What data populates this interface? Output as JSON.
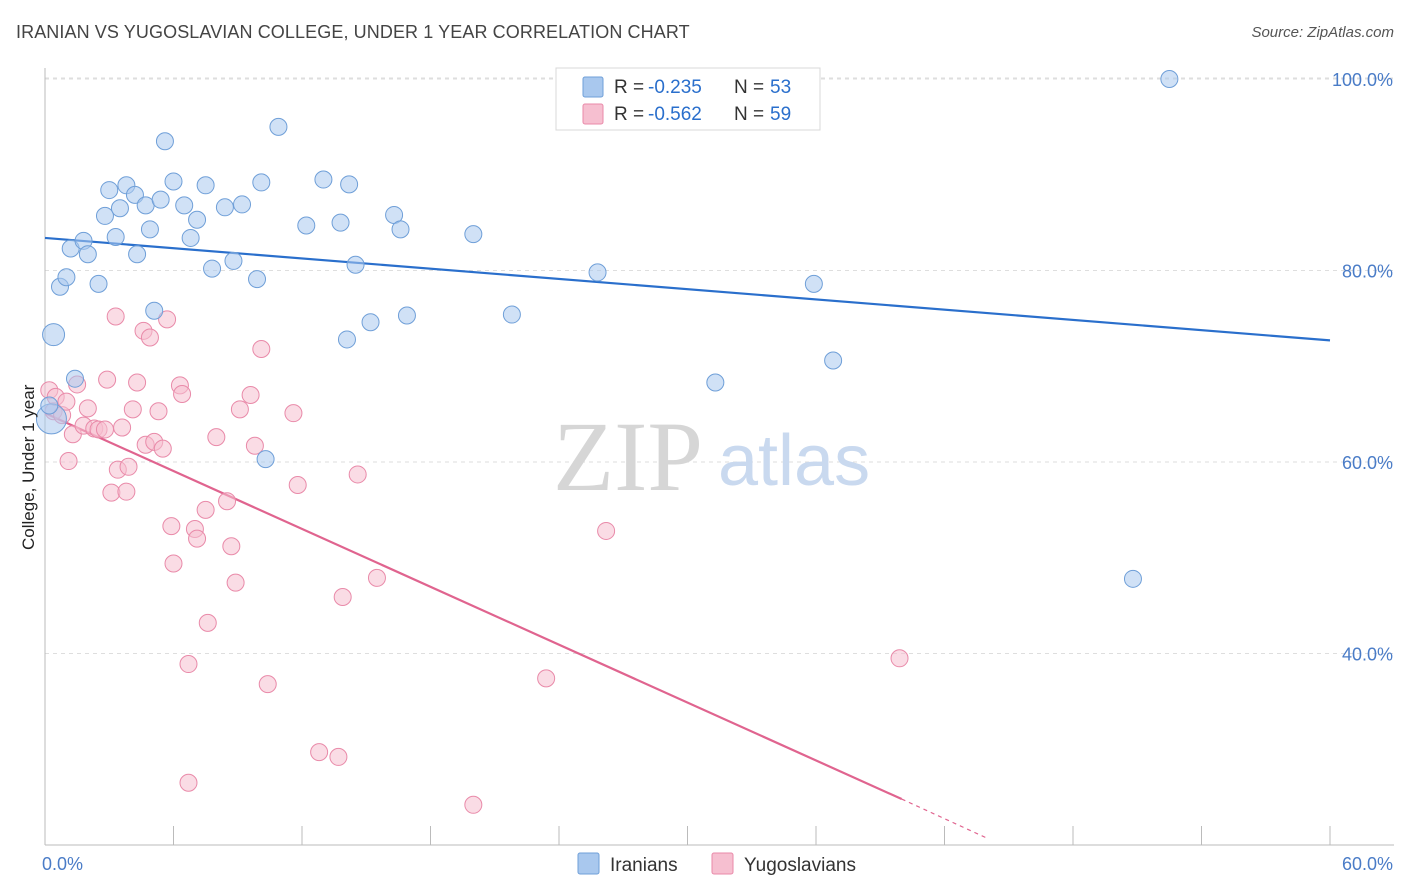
{
  "title": "IRANIAN VS YUGOSLAVIAN COLLEGE, UNDER 1 YEAR CORRELATION CHART",
  "source": "Source: ZipAtlas.com",
  "watermark": {
    "zip": "ZIP",
    "atlas": "atlas"
  },
  "legend": {
    "r_label": "R =",
    "n_label": "N =",
    "iranians": {
      "r": "-0.235",
      "n": "53"
    },
    "yugoslavians": {
      "r": "-0.562",
      "n": "59"
    }
  },
  "colors": {
    "iranians_fill": "#a9c8ee",
    "iranians_stroke": "#6f9fd8",
    "iranians_line": "#2a6fcc",
    "yugoslavians_fill": "#f6bfd0",
    "yugoslavians_stroke": "#e98aa9",
    "yugoslavians_line": "#e0648f",
    "value_text": "#2a6fcc"
  },
  "chart_data": {
    "type": "scatter",
    "title": "IRANIAN VS YUGOSLAVIAN COLLEGE, UNDER 1 YEAR CORRELATION CHART",
    "xlabel": "",
    "ylabel": "College, Under 1 year",
    "xlim": [
      0,
      60
    ],
    "ylim": [
      20,
      104
    ],
    "x_tick_labels": [
      "0.0%",
      "60.0%"
    ],
    "y_ticks": [
      40,
      60,
      80,
      100
    ],
    "y_tick_labels": [
      "40.0%",
      "60.0%",
      "80.0%",
      "100.0%"
    ],
    "grid": true,
    "legend_position": "top-center",
    "series": [
      {
        "name": "Iranians",
        "color": "#a9c8ee",
        "trend": {
          "x": [
            0,
            60
          ],
          "y": [
            83.4,
            72.7
          ]
        },
        "points": [
          [
            0.4,
            73.3
          ],
          [
            0.3,
            64.5
          ],
          [
            0.7,
            78.3
          ],
          [
            1.0,
            79.3
          ],
          [
            1.2,
            82.3
          ],
          [
            1.4,
            68.7
          ],
          [
            1.8,
            83.1
          ],
          [
            2.0,
            81.7
          ],
          [
            2.5,
            78.6
          ],
          [
            2.8,
            85.7
          ],
          [
            3.0,
            88.4
          ],
          [
            3.3,
            83.5
          ],
          [
            3.5,
            86.5
          ],
          [
            3.8,
            88.9
          ],
          [
            4.2,
            87.9
          ],
          [
            4.3,
            81.7
          ],
          [
            4.7,
            86.8
          ],
          [
            4.9,
            84.3
          ],
          [
            5.1,
            75.8
          ],
          [
            5.4,
            87.4
          ],
          [
            5.6,
            93.5
          ],
          [
            6.0,
            89.3
          ],
          [
            6.5,
            86.8
          ],
          [
            6.8,
            83.4
          ],
          [
            7.1,
            85.3
          ],
          [
            7.5,
            88.9
          ],
          [
            7.8,
            80.2
          ],
          [
            8.4,
            86.6
          ],
          [
            8.8,
            81.0
          ],
          [
            9.2,
            86.9
          ],
          [
            9.9,
            79.1
          ],
          [
            10.1,
            89.2
          ],
          [
            10.3,
            60.3
          ],
          [
            10.9,
            95.0
          ],
          [
            12.2,
            84.7
          ],
          [
            13.0,
            89.5
          ],
          [
            13.8,
            85.0
          ],
          [
            14.1,
            72.8
          ],
          [
            14.2,
            89.0
          ],
          [
            14.5,
            80.6
          ],
          [
            15.2,
            74.6
          ],
          [
            16.3,
            85.8
          ],
          [
            16.6,
            84.3
          ],
          [
            16.9,
            75.3
          ],
          [
            20.0,
            83.8
          ],
          [
            21.8,
            75.4
          ],
          [
            25.8,
            79.8
          ],
          [
            31.3,
            68.3
          ],
          [
            35.9,
            78.6
          ],
          [
            36.8,
            70.6
          ],
          [
            50.8,
            47.8
          ],
          [
            52.5,
            100.0
          ],
          [
            0.2,
            65.9
          ]
        ]
      },
      {
        "name": "Yugoslavians",
        "color": "#f6bfd0",
        "trend": {
          "x": [
            0,
            40
          ],
          "y": [
            65.1,
            24.8
          ]
        },
        "trend_dashed": {
          "x": [
            40,
            44
          ],
          "y": [
            24.8,
            20.7
          ]
        },
        "points": [
          [
            0.2,
            67.5
          ],
          [
            0.4,
            65.3
          ],
          [
            0.5,
            66.8
          ],
          [
            0.8,
            64.9
          ],
          [
            1.0,
            66.3
          ],
          [
            1.1,
            60.1
          ],
          [
            1.3,
            62.9
          ],
          [
            1.5,
            68.1
          ],
          [
            1.8,
            63.8
          ],
          [
            2.0,
            65.6
          ],
          [
            2.3,
            63.5
          ],
          [
            2.5,
            63.4
          ],
          [
            2.8,
            63.4
          ],
          [
            2.9,
            68.6
          ],
          [
            3.1,
            56.8
          ],
          [
            3.3,
            75.2
          ],
          [
            3.4,
            59.2
          ],
          [
            3.6,
            63.6
          ],
          [
            3.8,
            56.9
          ],
          [
            3.9,
            59.5
          ],
          [
            4.1,
            65.5
          ],
          [
            4.3,
            68.3
          ],
          [
            4.6,
            73.7
          ],
          [
            4.7,
            61.8
          ],
          [
            4.9,
            73.0
          ],
          [
            5.1,
            62.1
          ],
          [
            5.3,
            65.3
          ],
          [
            5.5,
            61.4
          ],
          [
            5.7,
            74.9
          ],
          [
            5.9,
            53.3
          ],
          [
            6.0,
            49.4
          ],
          [
            6.3,
            68.0
          ],
          [
            6.4,
            67.1
          ],
          [
            6.7,
            38.9
          ],
          [
            7.0,
            53.0
          ],
          [
            7.1,
            52.0
          ],
          [
            7.5,
            55.0
          ],
          [
            7.6,
            43.2
          ],
          [
            8.0,
            62.6
          ],
          [
            8.5,
            55.9
          ],
          [
            8.7,
            51.2
          ],
          [
            8.9,
            47.4
          ],
          [
            9.1,
            65.5
          ],
          [
            9.6,
            67.0
          ],
          [
            9.8,
            61.7
          ],
          [
            10.1,
            71.8
          ],
          [
            10.4,
            36.8
          ],
          [
            11.6,
            65.1
          ],
          [
            11.8,
            57.6
          ],
          [
            12.8,
            29.7
          ],
          [
            13.7,
            29.2
          ],
          [
            13.9,
            45.9
          ],
          [
            14.6,
            58.7
          ],
          [
            15.5,
            47.9
          ],
          [
            6.7,
            26.5
          ],
          [
            20.0,
            24.2
          ],
          [
            23.4,
            37.4
          ],
          [
            26.2,
            52.8
          ],
          [
            39.9,
            39.5
          ]
        ]
      }
    ]
  }
}
